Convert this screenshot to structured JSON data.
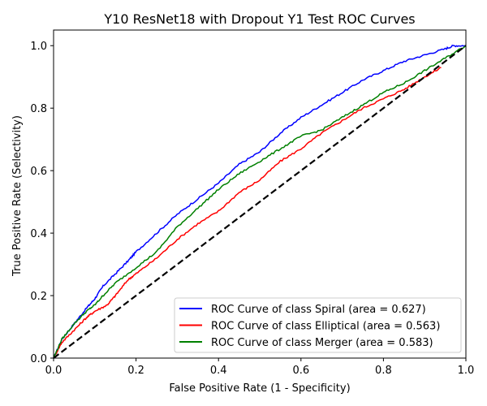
{
  "chart_data": {
    "type": "line",
    "title": "Y10 ResNet18 with Dropout Y1 Test ROC Curves",
    "xlabel": "False Positive Rate (1 - Specificity)",
    "ylabel": "True Positive Rate (Selectivity)",
    "xlim": [
      0.0,
      1.0
    ],
    "ylim": [
      0.0,
      1.05
    ],
    "xticks": [
      "0.0",
      "0.2",
      "0.4",
      "0.6",
      "0.8",
      "1.0"
    ],
    "yticks": [
      "0.0",
      "0.2",
      "0.4",
      "0.6",
      "0.8",
      "1.0"
    ],
    "grid": false,
    "legend_position": "lower-right",
    "diagonal": {
      "x": [
        0,
        1
      ],
      "y": [
        0,
        1
      ],
      "color": "#000000",
      "style": "dashed"
    },
    "series": [
      {
        "name": "ROC Curve of class Spiral (area = 0.627)",
        "color": "#0000ff",
        "x": [
          0,
          0.02,
          0.05,
          0.08,
          0.1,
          0.12,
          0.15,
          0.18,
          0.2,
          0.25,
          0.3,
          0.35,
          0.4,
          0.45,
          0.5,
          0.55,
          0.6,
          0.65,
          0.7,
          0.75,
          0.8,
          0.85,
          0.9,
          0.95,
          0.97,
          1.0
        ],
        "y": [
          0,
          0.06,
          0.11,
          0.16,
          0.19,
          0.23,
          0.27,
          0.31,
          0.34,
          0.4,
          0.46,
          0.51,
          0.56,
          0.62,
          0.66,
          0.72,
          0.77,
          0.81,
          0.85,
          0.89,
          0.92,
          0.95,
          0.97,
          0.99,
          1.0,
          1.0
        ]
      },
      {
        "name": "ROC Curve of class Elliptical (area = 0.563)",
        "color": "#ff0000",
        "x": [
          0,
          0.02,
          0.05,
          0.08,
          0.1,
          0.13,
          0.15,
          0.18,
          0.2,
          0.25,
          0.3,
          0.35,
          0.4,
          0.45,
          0.5,
          0.55,
          0.6,
          0.65,
          0.7,
          0.75,
          0.8,
          0.85,
          0.9,
          0.94
        ],
        "y": [
          0,
          0.05,
          0.09,
          0.13,
          0.15,
          0.17,
          0.2,
          0.25,
          0.27,
          0.32,
          0.38,
          0.43,
          0.47,
          0.53,
          0.57,
          0.63,
          0.67,
          0.72,
          0.76,
          0.8,
          0.83,
          0.86,
          0.9,
          0.93
        ]
      },
      {
        "name": "ROC Curve of class Merger (area = 0.583)",
        "color": "#008000",
        "x": [
          0,
          0.02,
          0.05,
          0.08,
          0.1,
          0.12,
          0.15,
          0.2,
          0.25,
          0.3,
          0.35,
          0.4,
          0.45,
          0.5,
          0.55,
          0.6,
          0.65,
          0.7,
          0.75,
          0.8,
          0.85,
          0.9,
          0.95,
          1.0
        ],
        "y": [
          0,
          0.06,
          0.11,
          0.15,
          0.17,
          0.2,
          0.24,
          0.29,
          0.34,
          0.42,
          0.48,
          0.54,
          0.59,
          0.63,
          0.67,
          0.71,
          0.73,
          0.77,
          0.81,
          0.85,
          0.88,
          0.92,
          0.96,
          1.0
        ]
      }
    ]
  }
}
